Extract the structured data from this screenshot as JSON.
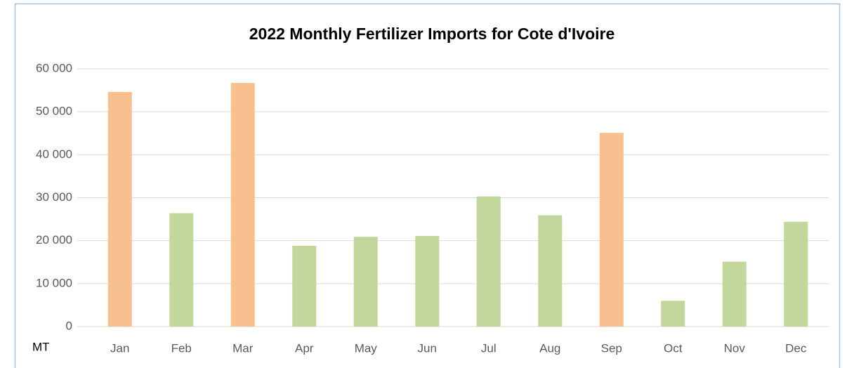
{
  "chart_data": {
    "type": "bar",
    "title": "2022 Monthly Fertilizer Imports for Cote d'Ivoire",
    "y_label": "MT",
    "categories": [
      "Jan",
      "Feb",
      "Mar",
      "Apr",
      "May",
      "Jun",
      "Jul",
      "Aug",
      "Sep",
      "Oct",
      "Nov",
      "Dec"
    ],
    "values": [
      54600,
      26400,
      56700,
      18800,
      20900,
      21100,
      30300,
      25900,
      45100,
      6000,
      15100,
      24400
    ],
    "colors": [
      "#f8bf8f",
      "#c3d69b",
      "#f8bf8f",
      "#c3d69b",
      "#c3d69b",
      "#c3d69b",
      "#c3d69b",
      "#c3d69b",
      "#f8bf8f",
      "#c3d69b",
      "#c3d69b",
      "#c3d69b"
    ],
    "ylim": [
      0,
      60000
    ],
    "yticks": [
      0,
      {
        "value": 10000,
        "label": "10 000"
      },
      {
        "value": 20000,
        "label": "20 000"
      },
      {
        "value": 30000,
        "label": "30 000"
      },
      {
        "value": 40000,
        "label": "40 000"
      },
      {
        "value": 50000,
        "label": "50 000"
      },
      {
        "value": 60000,
        "label": "60 000"
      }
    ],
    "grid": true
  }
}
